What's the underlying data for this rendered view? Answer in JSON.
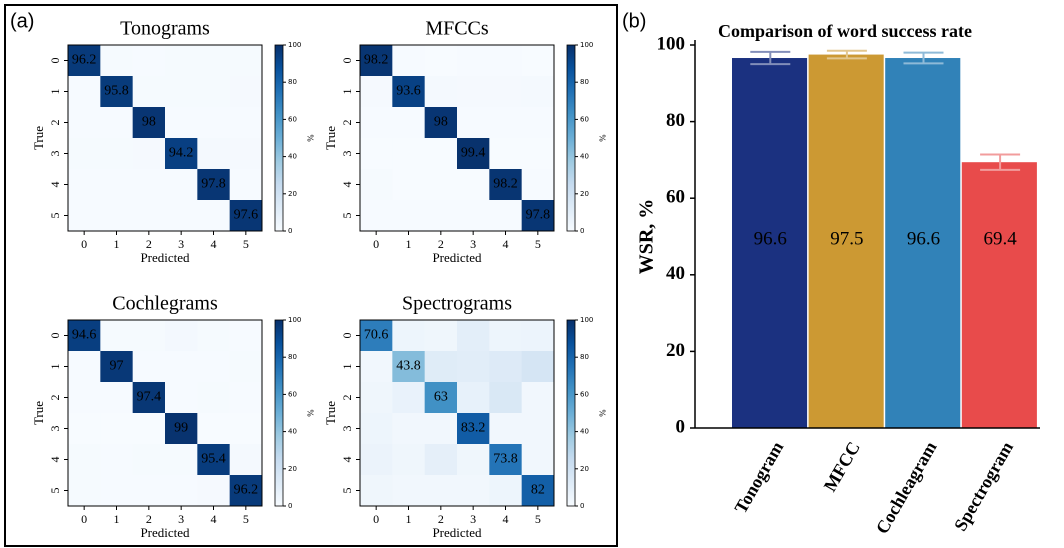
{
  "panel_labels": [
    "(a)",
    "(b)"
  ],
  "chart_data": [
    {
      "type": "heatmap",
      "title": "Tonograms",
      "x_label": "Predicted",
      "y_label": "True",
      "categories": [
        "0",
        "1",
        "2",
        "3",
        "4",
        "5"
      ],
      "values": [
        [
          96.2,
          0.8,
          0.6,
          0.8,
          0.8,
          0.8
        ],
        [
          0.6,
          95.8,
          0.8,
          0.8,
          0.8,
          1.2
        ],
        [
          0.4,
          0.4,
          98.0,
          0.4,
          0.4,
          0.4
        ],
        [
          1.0,
          1.0,
          1.2,
          94.2,
          1.4,
          1.2
        ],
        [
          0.4,
          0.4,
          0.6,
          0.4,
          97.8,
          0.4
        ],
        [
          0.4,
          0.4,
          0.4,
          0.6,
          0.6,
          97.6
        ]
      ],
      "colormap": "Blues",
      "clim": [
        0,
        100
      ],
      "cbar_ticks": [
        0,
        20,
        40,
        60,
        80,
        100
      ],
      "cbar_label": "%"
    },
    {
      "type": "heatmap",
      "title": "MFCCs",
      "x_label": "Predicted",
      "y_label": "True",
      "categories": [
        "0",
        "1",
        "2",
        "3",
        "4",
        "5"
      ],
      "values": [
        [
          98.2,
          0.4,
          0.2,
          0.4,
          0.6,
          0.2
        ],
        [
          1.2,
          93.6,
          1.4,
          1.2,
          1.2,
          1.4
        ],
        [
          0.4,
          0.4,
          98.0,
          0.4,
          0.4,
          0.4
        ],
        [
          0.2,
          0.2,
          0.0,
          99.4,
          0.2,
          0.0
        ],
        [
          0.8,
          0.2,
          0.2,
          0.2,
          98.2,
          0.4
        ],
        [
          0.4,
          0.4,
          0.4,
          0.4,
          0.6,
          97.8
        ]
      ],
      "colormap": "Blues",
      "clim": [
        0,
        100
      ],
      "cbar_ticks": [
        0,
        20,
        40,
        60,
        80,
        100
      ],
      "cbar_label": "%"
    },
    {
      "type": "heatmap",
      "title": "Cochlegrams",
      "x_label": "Predicted",
      "y_label": "True",
      "categories": [
        "0",
        "1",
        "2",
        "3",
        "4",
        "5"
      ],
      "values": [
        [
          94.6,
          1.0,
          1.0,
          2.0,
          0.8,
          0.6
        ],
        [
          0.6,
          97.0,
          0.6,
          0.4,
          0.6,
          0.8
        ],
        [
          0.4,
          0.6,
          97.4,
          0.4,
          0.8,
          0.4
        ],
        [
          0.2,
          0.2,
          0.2,
          99.0,
          0.2,
          0.2
        ],
        [
          0.8,
          0.6,
          0.8,
          0.8,
          95.4,
          1.6
        ],
        [
          0.8,
          0.6,
          0.6,
          0.6,
          1.2,
          96.2
        ]
      ],
      "colormap": "Blues",
      "clim": [
        0,
        100
      ],
      "cbar_ticks": [
        0,
        20,
        40,
        60,
        80,
        100
      ],
      "cbar_label": "%"
    },
    {
      "type": "heatmap",
      "title": "Spectrograms",
      "x_label": "Predicted",
      "y_label": "True",
      "categories": [
        "0",
        "1",
        "2",
        "3",
        "4",
        "5"
      ],
      "values": [
        [
          70.6,
          5.0,
          4.0,
          10.0,
          5.0,
          5.4
        ],
        [
          3.0,
          43.8,
          12.0,
          11.0,
          13.0,
          17.2
        ],
        [
          4.0,
          7.0,
          63.0,
          8.0,
          15.0,
          3.0
        ],
        [
          5.0,
          3.0,
          3.0,
          83.2,
          3.0,
          2.8
        ],
        [
          6.0,
          4.0,
          9.0,
          4.0,
          73.8,
          3.2
        ],
        [
          4.0,
          3.0,
          3.0,
          3.0,
          5.0,
          82.0
        ]
      ],
      "colormap": "Blues",
      "clim": [
        0,
        100
      ],
      "cbar_ticks": [
        0,
        20,
        40,
        60,
        80,
        100
      ],
      "cbar_label": "%"
    },
    {
      "type": "bar",
      "title": "Comparison of word success rate",
      "y_label": "WSR, %",
      "categories": [
        "Tonogram",
        "MFCC",
        "Cochleagram",
        "Spectrogram"
      ],
      "values": [
        96.6,
        97.5,
        96.6,
        69.4
      ],
      "errors": [
        1.6,
        1.0,
        1.4,
        2.0
      ],
      "colors": [
        "#1b3180",
        "#cc9933",
        "#3182b8",
        "#e84b4b"
      ],
      "ylim": [
        0,
        100
      ],
      "yticks": [
        0,
        20,
        40,
        60,
        80,
        100
      ]
    }
  ]
}
